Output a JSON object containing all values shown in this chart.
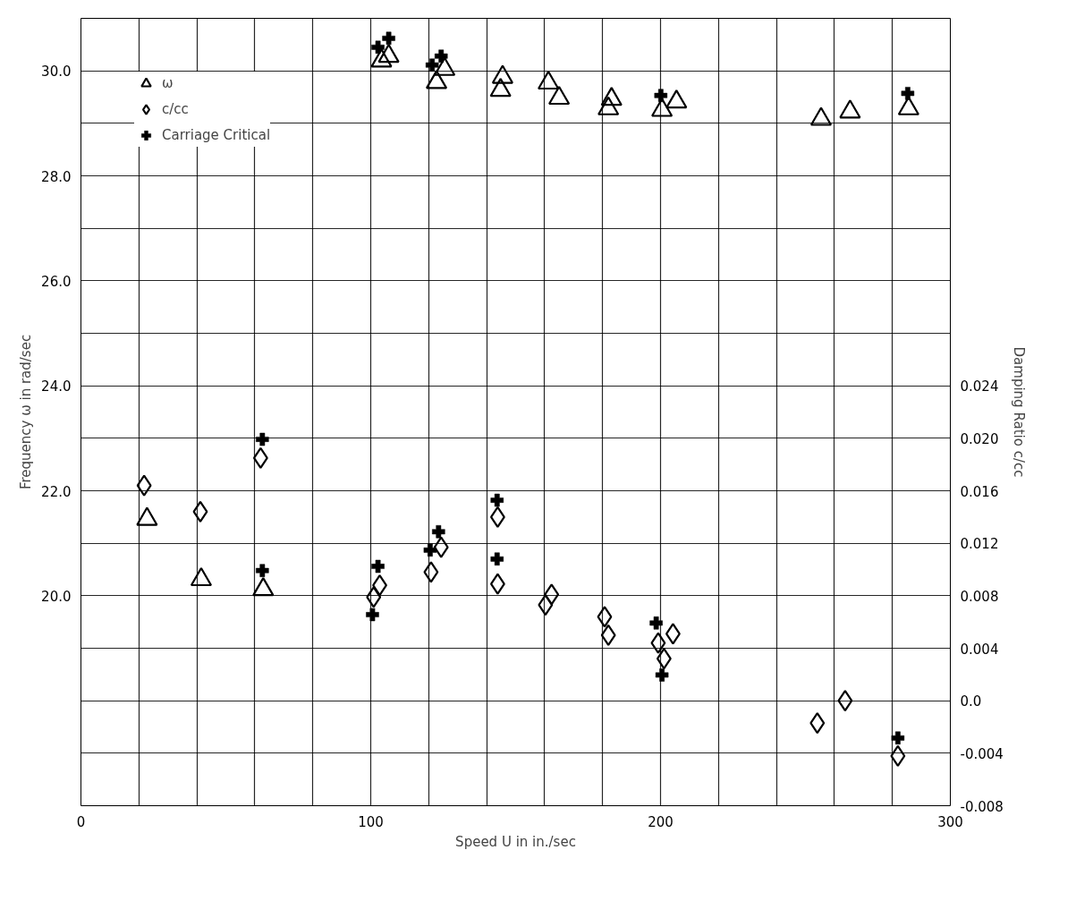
{
  "chart_data": {
    "type": "scatter",
    "xlabel": "Speed U in in./sec",
    "ylabel": "Frequency ω in rad/sec",
    "y2label": "Damping Ratio c/cc",
    "xlim": [
      0,
      300
    ],
    "xticks": [
      0,
      {
        "value": 20,
        "label": null
      },
      {
        "value": 40,
        "label": null
      },
      {
        "value": 60,
        "label": null
      },
      {
        "value": 80,
        "label": null
      },
      100,
      {
        "value": 120,
        "label": null
      },
      {
        "value": 140,
        "label": null
      },
      {
        "value": 160,
        "label": null
      },
      {
        "value": 180,
        "label": null
      },
      200,
      {
        "value": 220,
        "label": null
      },
      {
        "value": 240,
        "label": null
      },
      {
        "value": 260,
        "label": null
      },
      {
        "value": 280,
        "label": null
      },
      300
    ],
    "ylim": [
      16,
      31
    ],
    "yticks": [
      {
        "value": 17,
        "label": null
      },
      {
        "value": 18,
        "label": null
      },
      {
        "value": 19,
        "label": null
      },
      {
        "value": 20,
        "label": "20.0"
      },
      {
        "value": 21,
        "label": null
      },
      {
        "value": 22,
        "label": "22.0"
      },
      {
        "value": 23,
        "label": null
      },
      {
        "value": 24,
        "label": "24.0"
      },
      {
        "value": 25,
        "label": null
      },
      {
        "value": 26,
        "label": "26.0"
      },
      {
        "value": 27,
        "label": null
      },
      {
        "value": 28,
        "label": "28.0"
      },
      {
        "value": 29,
        "label": null
      },
      {
        "value": 30,
        "label": "30.0"
      }
    ],
    "y2lim": [
      -0.008,
      0.052
    ],
    "y2ticks": [
      {
        "value": -0.008,
        "label": "-0.008"
      },
      {
        "value": -0.004,
        "label": "-0.004"
      },
      {
        "value": 0,
        "label": "0.0"
      },
      {
        "value": 0.004,
        "label": "0.004"
      },
      {
        "value": 0.008,
        "label": "0.008"
      },
      {
        "value": 0.012,
        "label": "0.012"
      },
      {
        "value": 0.016,
        "label": "0.016"
      },
      {
        "value": 0.02,
        "label": "0.020"
      },
      {
        "value": 0.024,
        "label": "0.024"
      }
    ],
    "grid": true,
    "legend": "top left",
    "series": [
      {
        "name": "ω",
        "color": "#000000",
        "marker": "triangle",
        "x": [
          22.8,
          41.5,
          62.9,
          103.7,
          106.2,
          122.7,
          125.5,
          144.8,
          145.5,
          161.3,
          165.0,
          182.0,
          183.1,
          200.5,
          205.5,
          255.4,
          265.4,
          285.6
        ],
        "values": [
          21.46,
          20.31,
          20.12,
          30.19,
          30.28,
          29.78,
          30.03,
          29.63,
          29.88,
          29.77,
          29.48,
          29.28,
          29.46,
          29.25,
          29.41,
          29.08,
          29.22,
          29.28
        ]
      },
      {
        "name": "c/cc",
        "color": "#000000",
        "marker": "diamond",
        "axis": "y2",
        "x": [
          21.8,
          41.2,
          62.0,
          101.0,
          103.1,
          120.8,
          124.3,
          143.8,
          143.8,
          160.3,
          162.4,
          180.7,
          182.0,
          199.2,
          201.2,
          204.3,
          254.1,
          263.7,
          281.9
        ],
        "values": [
          0.0164,
          0.0144,
          0.0185,
          0.0079,
          0.0088,
          0.0098,
          0.0117,
          0.014,
          0.0089,
          0.0073,
          0.0081,
          0.0064,
          0.005,
          0.0044,
          0.0032,
          0.0051,
          -0.0017,
          0.0,
          -0.0042
        ]
      },
      {
        "name": "Carriage Critical",
        "color": "#000000",
        "marker": "cross",
        "x": [
          62.6,
          62.6,
          100.6,
          102.5,
          102.5,
          106.2,
          120.5,
          121.2,
          123.4,
          124.3,
          143.6,
          143.6,
          198.5,
          200.1,
          200.5,
          281.9,
          285.3
        ],
        "values": [
          22.98,
          20.48,
          19.64,
          20.56,
          30.45,
          30.62,
          20.87,
          30.11,
          21.22,
          30.28,
          21.82,
          20.7,
          19.48,
          29.53,
          18.49,
          17.29,
          29.57
        ]
      }
    ]
  }
}
